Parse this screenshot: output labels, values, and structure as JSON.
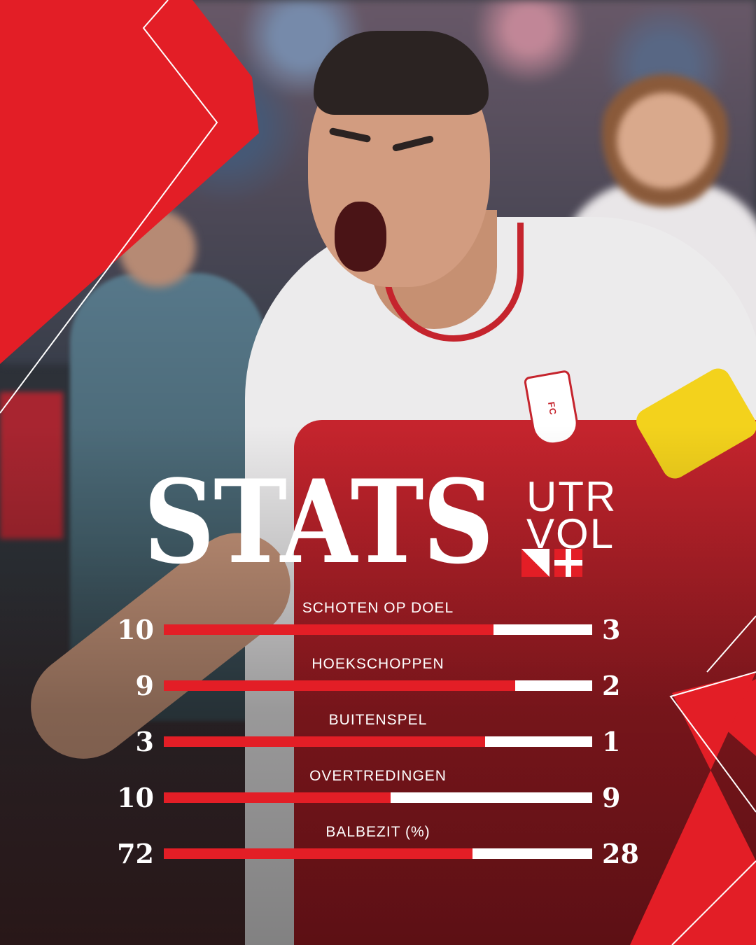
{
  "graphic": {
    "title": "STATS",
    "home_code": "UTR",
    "away_code": "VOL",
    "colors": {
      "accent": "#e31e26",
      "bar_home": "#e31e26",
      "bar_away": "#ffffff",
      "text": "#ffffff"
    },
    "icons": {
      "home_flag": "utrecht-flag-icon",
      "away_flag": "volendam-flag-icon"
    }
  },
  "stats": [
    {
      "label": "SCHOTEN OP DOEL",
      "home": "10",
      "away": "3",
      "home_share": 0.77
    },
    {
      "label": "HOEKSCHOPPEN",
      "home": "9",
      "away": "2",
      "home_share": 0.82
    },
    {
      "label": "BUITENSPEL",
      "home": "3",
      "away": "1",
      "home_share": 0.75
    },
    {
      "label": "OVERTREDINGEN",
      "home": "10",
      "away": "9",
      "home_share": 0.53
    },
    {
      "label": "BALBEZIT (%)",
      "home": "72",
      "away": "28",
      "home_share": 0.72
    }
  ]
}
